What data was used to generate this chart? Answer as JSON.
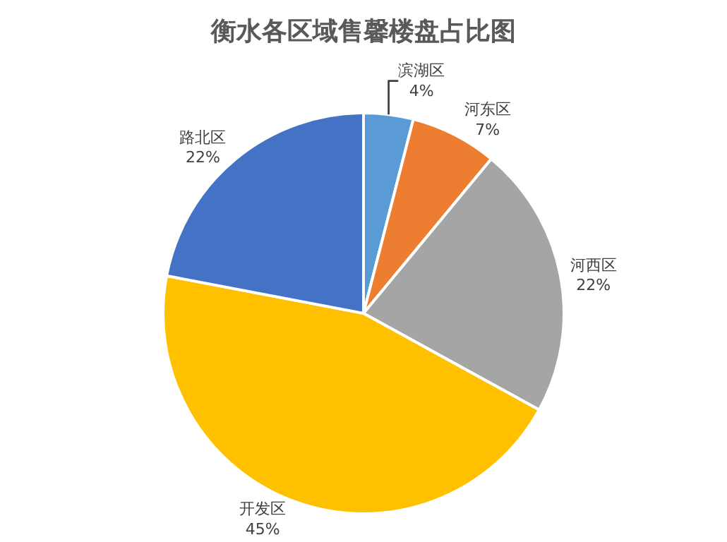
{
  "chart_data": {
    "type": "pie",
    "title": "衡水各区域售馨楼盘占比图",
    "categories": [
      "滨湖区",
      "河东区",
      "河西区",
      "开发区",
      "路北区"
    ],
    "values": [
      4,
      7,
      22,
      45,
      22
    ],
    "value_labels": [
      "4%",
      "7%",
      "22%",
      "45%",
      "22%"
    ],
    "colors": [
      "#5b9bd5",
      "#ed7d31",
      "#a5a5a5",
      "#ffc000",
      "#4472c4"
    ],
    "legend": false
  }
}
